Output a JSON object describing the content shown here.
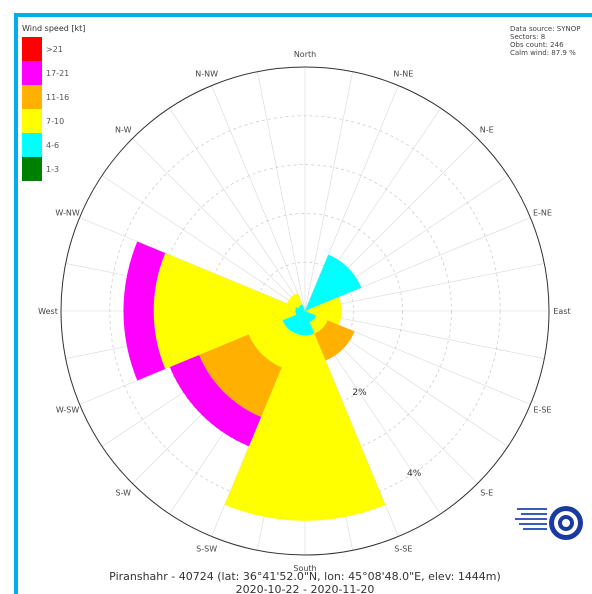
{
  "chart_data": {
    "type": "wind-rose",
    "legend_title": "Wind speed [kt]",
    "speed_classes": [
      {
        "label": ">21",
        "color": "#ff0000"
      },
      {
        "label": "17-21",
        "color": "#ff00ff"
      },
      {
        "label": "11-16",
        "color": "#ffb000"
      },
      {
        "label": "7-10",
        "color": "#ffff00"
      },
      {
        "label": "4-6",
        "color": "#00ffff"
      },
      {
        "label": "1-3",
        "color": "#008000"
      }
    ],
    "info_lines": [
      "Data source: SYNOP",
      "Sectors: 8",
      "Obs count: 246",
      "Calm wind: 87.9 %"
    ],
    "direction_labels": [
      "North",
      "N-NE",
      "N-E",
      "E-NE",
      "East",
      "E-SE",
      "S-E",
      "S-SE",
      "South",
      "S-SW",
      "S-W",
      "W-SW",
      "West",
      "W-NW",
      "N-W",
      "N-NW"
    ],
    "ring_labels": [
      {
        "value": 2,
        "label": "2%"
      },
      {
        "value": 4,
        "label": "4%"
      }
    ],
    "sectors": [
      {
        "direction": "North",
        "segments": [
          {
            "class": "1-3",
            "value": 0
          }
        ]
      },
      {
        "direction": "N-E",
        "segments": [
          {
            "class": "4-6",
            "value": 1.25
          }
        ]
      },
      {
        "direction": "East",
        "segments": [
          {
            "class": "7-10",
            "value": 0.75
          }
        ]
      },
      {
        "direction": "S-E",
        "segments": [
          {
            "class": "4-6",
            "value": 0.25
          },
          {
            "class": "7-10",
            "value": 0.25
          },
          {
            "class": "11-16",
            "value": 0.6
          }
        ]
      },
      {
        "direction": "South",
        "segments": [
          {
            "class": "4-6",
            "value": 0.5
          },
          {
            "class": "7-10",
            "value": 3.8
          }
        ]
      },
      {
        "direction": "S-W",
        "segments": [
          {
            "class": "4-6",
            "value": 0.5
          },
          {
            "class": "7-10",
            "value": 0.75
          },
          {
            "class": "11-16",
            "value": 1.1
          },
          {
            "class": "17-21",
            "value": 0.65
          }
        ]
      },
      {
        "direction": "West",
        "segments": [
          {
            "class": "4-6",
            "value": 0.2
          },
          {
            "class": "7-10",
            "value": 2.9
          },
          {
            "class": "17-21",
            "value": 0.62
          }
        ]
      },
      {
        "direction": "N-W",
        "segments": [
          {
            "class": "4-6",
            "value": 0.15
          },
          {
            "class": "7-10",
            "value": 0.25
          }
        ]
      }
    ],
    "rmax": 5,
    "footer_line1": "Piranshahr - 40724 (lat: 36°41'52.0\"N, lon: 45°08'48.0\"E, elev: 1444m)",
    "footer_line2": "2020-10-22 - 2020-11-20"
  }
}
